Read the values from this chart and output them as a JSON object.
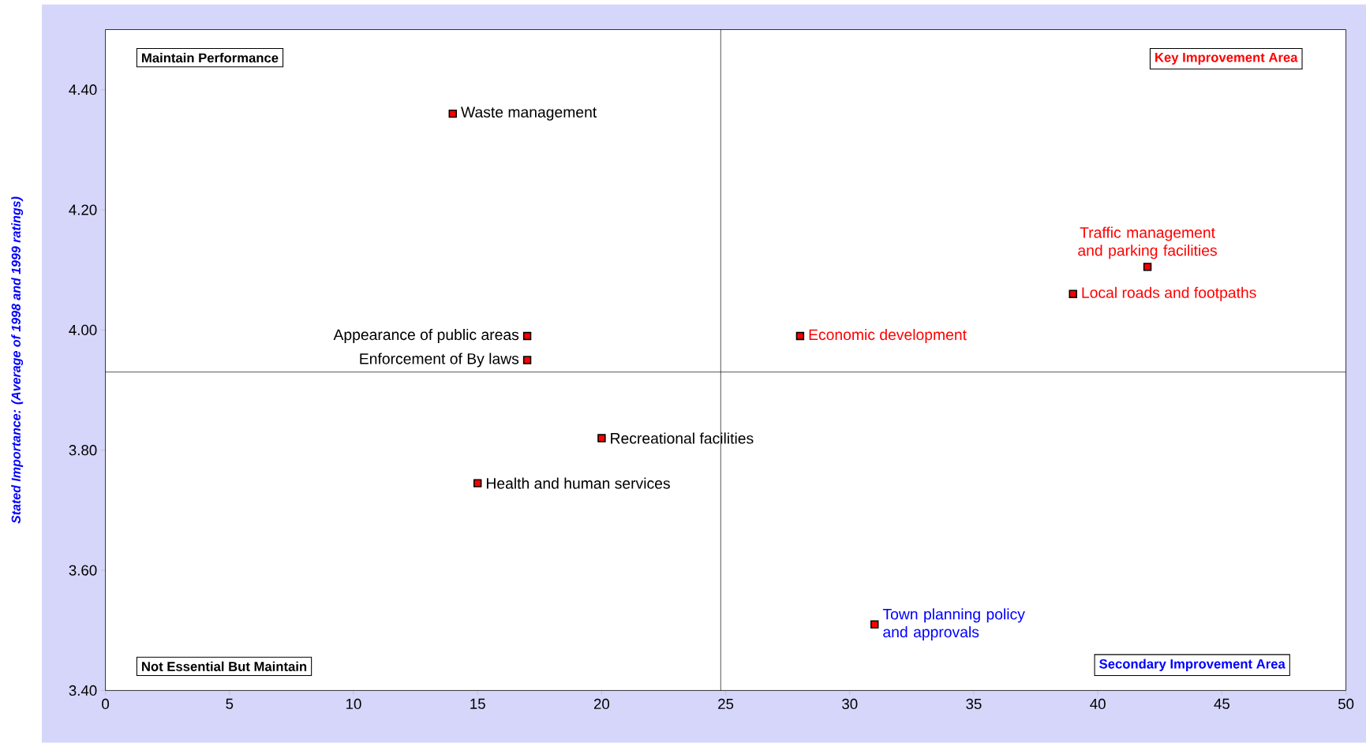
{
  "chart_data": {
    "type": "scatter",
    "ylabel": "Stated Importance: (Average of 1998 and 1999 ratings)",
    "x": [
      14,
      17,
      17,
      20,
      15,
      28,
      39,
      42,
      31
    ],
    "series": [
      {
        "color": "#ff0000",
        "values": [
          4.36,
          3.99,
          3.95,
          3.82,
          3.745,
          3.99,
          4.06,
          4.105,
          3.51
        ]
      }
    ],
    "marker": "square",
    "grid": false,
    "xlim": [
      0,
      50
    ],
    "xticks": [
      0,
      5,
      10,
      15,
      20,
      25,
      30,
      35,
      40,
      45,
      50
    ],
    "ylim": [
      3.4,
      4.5
    ],
    "yticks": [
      {
        "value": 3.4,
        "label": "3.40"
      },
      {
        "value": 3.6,
        "label": "3.60"
      },
      {
        "value": 3.8,
        "label": "3.80"
      },
      {
        "value": 4.0,
        "label": "4.00"
      },
      {
        "value": 4.2,
        "label": "4.20"
      },
      {
        "value": 4.4,
        "label": "4.40"
      }
    ],
    "ref_lines": [
      {
        "axis": "x",
        "value": 24.8
      },
      {
        "axis": "y",
        "value": 3.93
      }
    ],
    "annotations": [
      "Maintain Performance",
      "Key Improvement Area",
      "Not Essential But Maintain",
      "Secondary Improvement Area",
      {
        "text": "Waste management",
        "x": 14,
        "y": 4.36
      },
      {
        "text": "Appearance of public areas",
        "x": 17,
        "y": 3.99
      },
      {
        "text": "Enforcement of By laws",
        "x": 17,
        "y": 3.95
      },
      {
        "text": "Recreational facilities",
        "x": 20,
        "y": 3.82
      },
      {
        "text": "Health and human services",
        "x": 15,
        "y": 3.745
      },
      {
        "text": "Economic development",
        "x": 28,
        "y": 3.99
      },
      {
        "text": "Local roads and footpaths",
        "x": 39,
        "y": 4.06
      },
      {
        "text": "Traffic management and parking facilities",
        "x": 42,
        "y": 4.105
      },
      {
        "text": "Town planning policy and approvals",
        "x": 31,
        "y": 3.51
      }
    ]
  }
}
